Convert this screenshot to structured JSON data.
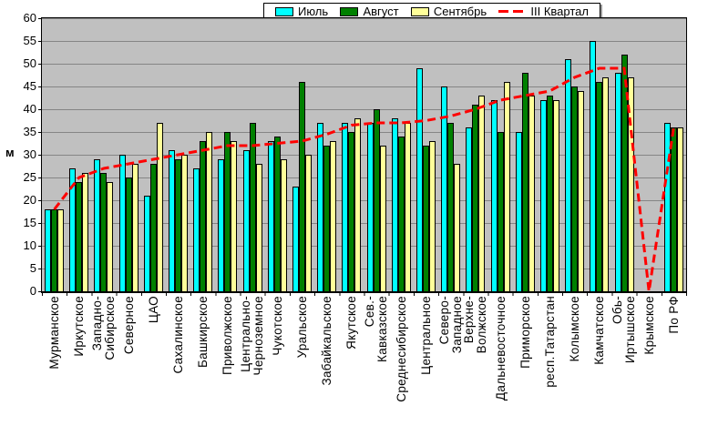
{
  "legend": {
    "items": [
      {
        "label": "Июль",
        "color": "#00FFFF",
        "type": "box"
      },
      {
        "label": "Август",
        "color": "#008000",
        "type": "box"
      },
      {
        "label": "Сентябрь",
        "color": "#FFFF99",
        "type": "box"
      },
      {
        "label": "III Квартал",
        "color": "#FF0000",
        "type": "dashed-line"
      }
    ]
  },
  "y_axis": {
    "title": "м",
    "min": 0,
    "max": 60,
    "step": 5,
    "tick_labels": [
      "60",
      "55",
      "50",
      "45",
      "40",
      "35",
      "30",
      "25",
      "20",
      "15",
      "10",
      "5",
      "0"
    ]
  },
  "chart_data": {
    "type": "bar",
    "title": "",
    "xlabel": "",
    "ylabel": "м",
    "ylim": [
      0,
      60
    ],
    "grid": true,
    "legend_position": "top",
    "plot_background": "#C0C0C0",
    "gridline_color": "#858585",
    "categories": [
      [
        "Мурманское"
      ],
      [
        "Иркутское"
      ],
      [
        "Западно-",
        "Сибирское"
      ],
      [
        "Северное"
      ],
      [
        "ЦАО"
      ],
      [
        "Сахалинское"
      ],
      [
        "Башкирское"
      ],
      [
        "Приволжское"
      ],
      [
        "Центрально-",
        "Черноземное"
      ],
      [
        "Чукотское"
      ],
      [
        "Уральское"
      ],
      [
        "Забайкальское"
      ],
      [
        "Якутское"
      ],
      [
        "Сев.-",
        "Кавказское"
      ],
      [
        "Среднесибирское"
      ],
      [
        "Центральное"
      ],
      [
        "Северо-",
        "Западное"
      ],
      [
        "Верхне-",
        "Волжское"
      ],
      [
        "Дальневосточное"
      ],
      [
        "Приморское"
      ],
      [
        "респ.Татарстан"
      ],
      [
        "Колымское"
      ],
      [
        "Камчатское"
      ],
      [
        "Обь-",
        "Иртышское"
      ],
      [
        "Крымское"
      ],
      [
        "По РФ"
      ]
    ],
    "series": [
      {
        "name": "Июль",
        "type": "bar",
        "color": "#00FFFF",
        "values": [
          18,
          27,
          29,
          30,
          21,
          31,
          27,
          29,
          31,
          33,
          23,
          37,
          37,
          37,
          38,
          49,
          45,
          36,
          42,
          35,
          42,
          51,
          55,
          48,
          null,
          37
        ]
      },
      {
        "name": "Август",
        "type": "bar",
        "color": "#008000",
        "values": [
          18,
          24,
          26,
          25,
          28,
          29,
          33,
          35,
          37,
          34,
          46,
          32,
          35,
          40,
          34,
          32,
          37,
          41,
          35,
          48,
          43,
          45,
          46,
          52,
          null,
          36
        ]
      },
      {
        "name": "Сентябрь",
        "type": "bar",
        "color": "#FFFF99",
        "values": [
          18,
          26,
          24,
          28,
          37,
          30,
          35,
          33,
          28,
          29,
          30,
          33,
          38,
          32,
          37,
          33,
          28,
          43,
          46,
          43,
          42,
          44,
          47,
          47,
          null,
          36
        ]
      },
      {
        "name": "III Квартал",
        "type": "line",
        "dashed": true,
        "color": "#FF0000",
        "values": [
          18,
          25,
          27,
          28,
          29,
          30,
          31,
          32,
          32,
          32.5,
          33,
          34.5,
          36.5,
          37,
          37,
          37.5,
          38.5,
          40,
          42,
          43,
          44,
          47,
          49,
          49,
          0,
          36
        ]
      }
    ]
  }
}
